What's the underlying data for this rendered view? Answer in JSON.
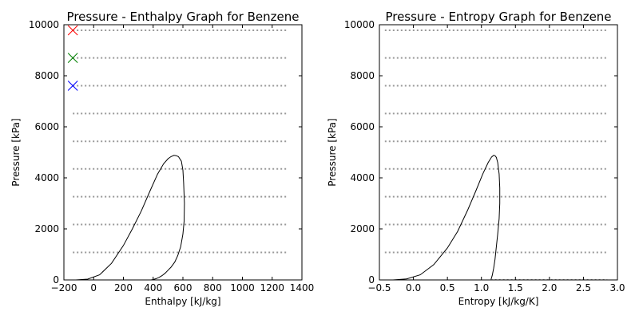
{
  "chart_data": [
    {
      "type": "line",
      "title": "Pressure - Enthalpy Graph for Benzene",
      "xlabel": "Enthalpy [kJ/kg]",
      "ylabel": "Pressure [kPa]",
      "xlim": [
        -200,
        1400
      ],
      "ylim": [
        0,
        10000
      ],
      "xticks": [
        "−200",
        "0",
        "200",
        "400",
        "600",
        "800",
        "1000",
        "1200",
        "1400"
      ],
      "yticks": [
        "0",
        "2000",
        "4000",
        "6000",
        "8000",
        "10000"
      ],
      "grid": false,
      "isobar_pressures": [
        1080,
        2170,
        3260,
        4350,
        5430,
        6520,
        7610,
        8700,
        9780
      ],
      "isobar_x_range": [
        -140,
        1300
      ],
      "saturation_dome": {
        "x": [
          -120,
          -40,
          40,
          120,
          200,
          260,
          320,
          380,
          430,
          470,
          500,
          520,
          540,
          555,
          570,
          590,
          600,
          605,
          610,
          608,
          600,
          585,
          565,
          545,
          520,
          500,
          480,
          460,
          440,
          420,
          400,
          385
        ],
        "y": [
          0,
          30,
          200,
          650,
          1350,
          2000,
          2700,
          3500,
          4150,
          4550,
          4750,
          4830,
          4880,
          4870,
          4830,
          4650,
          4300,
          3800,
          3000,
          2300,
          1800,
          1300,
          950,
          700,
          500,
          380,
          260,
          170,
          100,
          50,
          15,
          0
        ]
      },
      "markers": [
        {
          "x": -140,
          "y": 9780,
          "color": "#ff0000",
          "symbol": "x"
        },
        {
          "x": -140,
          "y": 8700,
          "color": "#008000",
          "symbol": "x"
        },
        {
          "x": -140,
          "y": 7610,
          "color": "#0000ff",
          "symbol": "x"
        }
      ]
    },
    {
      "type": "line",
      "title": "Pressure - Entropy Graph for Benzene",
      "xlabel": "Entropy [kJ/kg/K]",
      "ylabel": "Pressure [kPa]",
      "xlim": [
        -0.5,
        3.0
      ],
      "ylim": [
        0,
        10000
      ],
      "xticks": [
        "−0.5",
        "0.0",
        "0.5",
        "1.0",
        "1.5",
        "2.0",
        "2.5",
        "3.0"
      ],
      "yticks": [
        "0",
        "2000",
        "4000",
        "6000",
        "8000",
        "10000"
      ],
      "grid": false,
      "isobar_pressures": [
        1080,
        2170,
        3260,
        4350,
        5430,
        6520,
        7610,
        8700,
        9780
      ],
      "isobar_x_range": [
        -0.42,
        2.85
      ],
      "saturation_dome": {
        "x": [
          -0.3,
          -0.1,
          0.1,
          0.3,
          0.5,
          0.65,
          0.8,
          0.92,
          1.02,
          1.1,
          1.15,
          1.18,
          1.2,
          1.22,
          1.24,
          1.26,
          1.27,
          1.27,
          1.26,
          1.24,
          1.22,
          1.2,
          1.18,
          1.16,
          1.14
        ],
        "y": [
          0,
          40,
          200,
          600,
          1250,
          1900,
          2750,
          3500,
          4150,
          4600,
          4820,
          4880,
          4870,
          4800,
          4600,
          4150,
          3600,
          3000,
          2400,
          1800,
          1300,
          800,
          450,
          180,
          0
        ]
      },
      "extension": {
        "x": [
          1.14,
          2.85
        ],
        "y": [
          0,
          0
        ]
      },
      "markers": []
    }
  ],
  "colors": {
    "axes": "#000000",
    "curve": "#000000",
    "isobar": "#999999"
  }
}
